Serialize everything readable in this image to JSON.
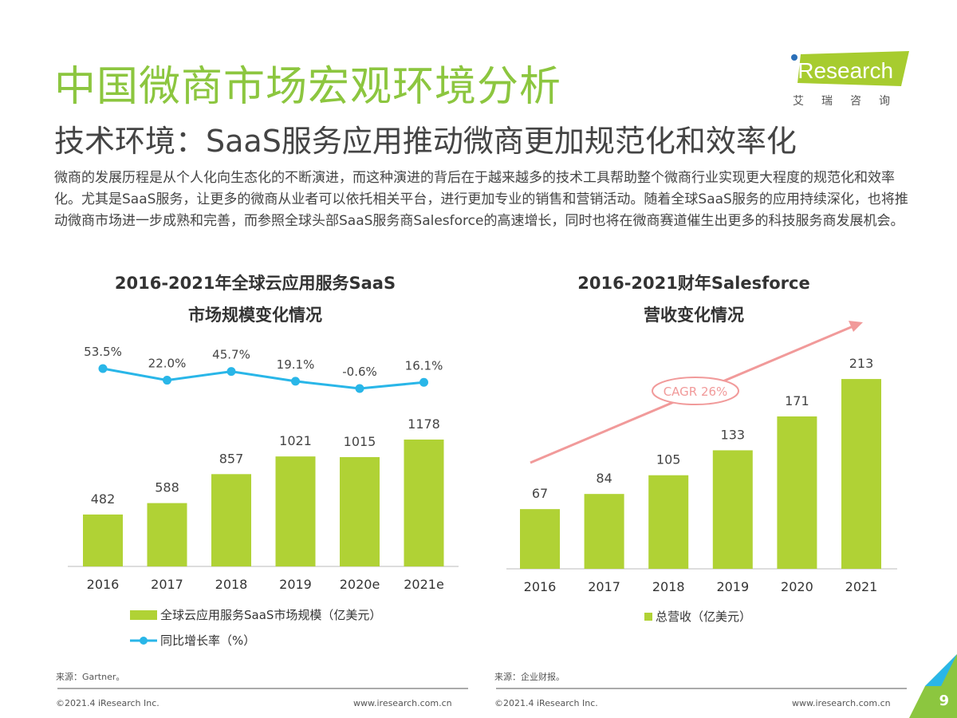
{
  "header": {
    "title": "中国微商市场宏观环境分析",
    "subtitle": "技术环境：SaaS服务应用推动微商更加规范化和效率化",
    "logo_text": "iResearch",
    "logo_cn": "艾瑞咨询"
  },
  "body_text": "微商的发展历程是从个人化向生态化的不断演进，而这种演进的背后在于越来越多的技术工具帮助整个微商行业实现更大程度的规范化和效率化。尤其是SaaS服务，让更多的微商从业者可以依托相关平台，进行更加专业的销售和营销活动。随着全球SaaS服务的应用持续深化，也将推动微商市场进一步成熟和完善，而参照全球头部SaaS服务商Salesforce的高速增长，同时也将在微商赛道催生出更多的科技服务商发展机会。",
  "colors": {
    "bar": "#b0d235",
    "line": "#29b6e8",
    "title": "#8cc63f",
    "arrow": "#f19a9a"
  },
  "chart_data": [
    {
      "type": "bar+line",
      "title_line1": "2016-2021年全球云应用服务SaaS",
      "title_line2": "市场规模变化情况",
      "categories": [
        "2016",
        "2017",
        "2018",
        "2019",
        "2020e",
        "2021e"
      ],
      "series": [
        {
          "name": "全球云应用服务SaaS市场规模（亿美元）",
          "type": "bar",
          "values": [
            482,
            588,
            857,
            1021,
            1015,
            1178
          ],
          "labels": [
            "482",
            "588",
            "857",
            "1021",
            "1015",
            "1178"
          ]
        },
        {
          "name": "同比增长率（%）",
          "type": "line",
          "values": [
            53.5,
            22.0,
            45.7,
            19.1,
            -0.6,
            16.1
          ],
          "labels": [
            "53.5%",
            "22.0%",
            "45.7%",
            "19.1%",
            "-0.6%",
            "16.1%"
          ]
        }
      ],
      "legend_position": "bottom",
      "source": "来源：Gartner。"
    },
    {
      "type": "bar",
      "title_line1": "2016-2021财年Salesforce",
      "title_line2": "营收变化情况",
      "categories": [
        "2016",
        "2017",
        "2018",
        "2019",
        "2020",
        "2021"
      ],
      "series": [
        {
          "name": "总营收（亿美元）",
          "values": [
            67,
            84,
            105,
            133,
            171,
            213
          ],
          "labels": [
            "67",
            "84",
            "105",
            "133",
            "171",
            "213"
          ]
        }
      ],
      "annotation": "CAGR 26%",
      "legend_position": "bottom",
      "source": "来源：企业财报。"
    }
  ],
  "footer": {
    "copyright": "©2021.4 iResearch Inc.",
    "url": "www.iresearch.com.cn",
    "page": "9"
  }
}
